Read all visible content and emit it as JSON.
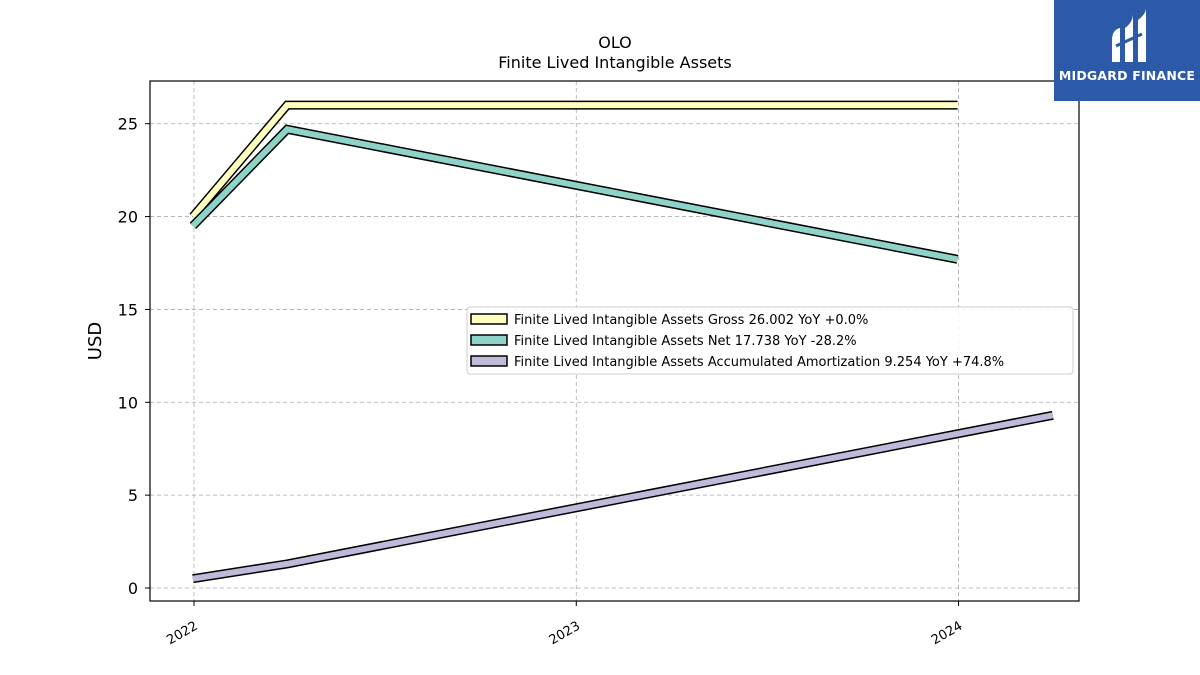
{
  "brand": {
    "name": "MIDGARD FINANCE",
    "bg_color": "#2c5aa8"
  },
  "chart_data": {
    "type": "line",
    "title": "OLO",
    "subtitle": "Finite Lived Intangible Assets",
    "xlabel": "",
    "ylabel": "USD",
    "x_ticks": [
      "2022",
      "2023",
      "2024"
    ],
    "y_ticks": [
      0,
      5,
      10,
      15,
      20,
      25
    ],
    "xlim": [
      "2021-11-20",
      "2024-04-25"
    ],
    "ylim": [
      -0.7,
      27.3
    ],
    "grid": true,
    "legend_position": "center-right",
    "series": [
      {
        "name": "Finite Lived Intangible Assets Gross",
        "legend_label": "Finite Lived Intangible Assets Gross  26.002 YoY +0.0%",
        "color": "#ffffbf",
        "points": [
          {
            "x": "2021-12-31",
            "y": 20.0
          },
          {
            "x": "2022-03-31",
            "y": 26.0
          },
          {
            "x": "2023-12-31",
            "y": 26.0
          }
        ]
      },
      {
        "name": "Finite Lived Intangible Assets Net",
        "legend_label": "Finite Lived Intangible Assets Net  17.738 YoY -28.2%",
        "color": "#8dd3c7",
        "points": [
          {
            "x": "2021-12-31",
            "y": 19.5
          },
          {
            "x": "2022-03-31",
            "y": 24.7
          },
          {
            "x": "2023-12-31",
            "y": 17.7
          }
        ]
      },
      {
        "name": "Finite Lived Intangible Assets Accumulated Amortization",
        "legend_label": "Finite Lived Intangible Assets Accumulated Amortization  9.254 YoY +74.8%",
        "color": "#bebada",
        "points": [
          {
            "x": "2021-12-31",
            "y": 0.5
          },
          {
            "x": "2022-03-31",
            "y": 1.3
          },
          {
            "x": "2024-03-31",
            "y": 9.3
          }
        ]
      }
    ]
  }
}
